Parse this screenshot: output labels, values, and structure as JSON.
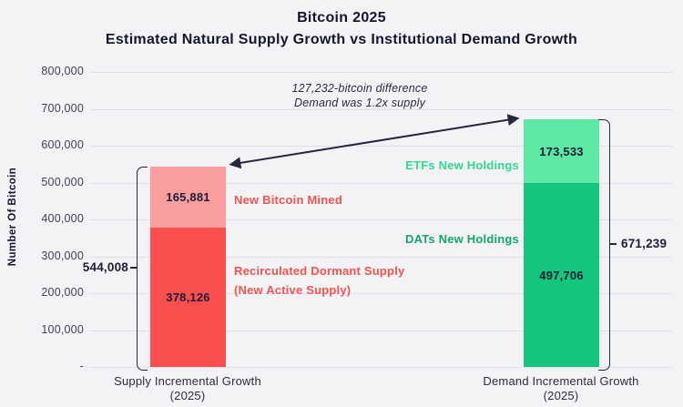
{
  "title": {
    "line1": "Bitcoin 2025",
    "line2": "Estimated Natural Supply Growth vs Institutional Demand Growth"
  },
  "y_axis": {
    "label": "Number Of Bitcoin",
    "tick_labels": [
      "800,000",
      "700,000",
      "600,000",
      "500,000",
      "400,000",
      "300,000",
      "200,000",
      "100,000",
      "-"
    ]
  },
  "x_axis": {
    "categories": [
      {
        "line1": "Supply Incremental Growth",
        "line2": "(2025)"
      },
      {
        "line1": "Demand Incremental Growth",
        "line2": "(2025)"
      }
    ]
  },
  "annotation": {
    "line1": "127,232-bitcoin difference",
    "line2": "Demand was 1.2x supply"
  },
  "labels": {
    "new_bitcoin_mined": "New Bitcoin Mined",
    "recirculated_line1": "Recirculated Dormant Supply",
    "recirculated_line2": "(New Active Supply)",
    "etfs_new_holdings": "ETFs New Holdings",
    "dats_new_holdings": "DATs New Holdings"
  },
  "colors": {
    "background": "#F3F3F6",
    "gridline": "#E0E0E8",
    "dark_navy": "#15152F",
    "supply_dark_red": "#FB4E4E",
    "supply_light_red": "#F99E9E",
    "supply_label_red": "#F4524F",
    "demand_dark_green": "#13C67C",
    "demand_light_green": "#5DE9A5",
    "etf_label_green": "#2EDA8F",
    "dat_label_green": "#14A76A"
  },
  "chart_data": {
    "type": "bar",
    "stacked": true,
    "title": "Bitcoin 2025",
    "subtitle": "Estimated Natural Supply Growth vs Institutional Demand Growth",
    "xlabel": "",
    "ylabel": "Number Of Bitcoin",
    "ylim": [
      0,
      800000
    ],
    "ytick_interval": 100000,
    "grid": true,
    "legend_position": "none",
    "categories": [
      "Supply Incremental Growth (2025)",
      "Demand Incremental Growth (2025)"
    ],
    "bars": [
      {
        "category": "Supply Incremental Growth (2025)",
        "total": 544008,
        "total_label": "544,008",
        "segments": [
          {
            "name": "Recirculated Dormant Supply (New Active Supply)",
            "value": 378126,
            "label": "378,126",
            "color": "#FB4E4E"
          },
          {
            "name": "New Bitcoin Mined",
            "value": 165881,
            "label": "165,881",
            "color": "#F99E9E"
          }
        ]
      },
      {
        "category": "Demand Incremental Growth (2025)",
        "total": 671239,
        "total_label": "671,239",
        "segments": [
          {
            "name": "DATs New Holdings",
            "value": 497706,
            "label": "497,706",
            "color": "#13C67C"
          },
          {
            "name": "ETFs New Holdings",
            "value": 173533,
            "label": "173,533",
            "color": "#5DE9A5"
          }
        ]
      }
    ],
    "annotations": [
      "127,232-bitcoin difference",
      "Demand was 1.2x supply"
    ]
  }
}
